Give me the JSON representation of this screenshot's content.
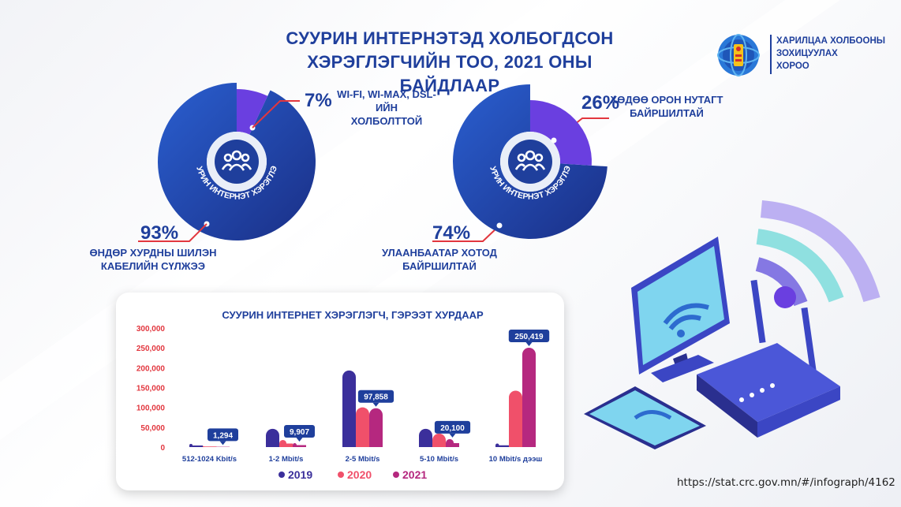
{
  "title": {
    "line1": "СУУРИН ИНТЕРНЭТЭД ХОЛБОГДСОН",
    "line2": "ХЭРЭГЛЭГЧИЙН ТОО, 2021 ОНЫ БАЙДЛААР"
  },
  "org": {
    "line1": "ХАРИЛЦАА ХОЛБООНЫ",
    "line2": "ЗОХИЦУУЛАХ",
    "line3": "ХОРОО",
    "emblem_icon": "soyombo-emblem-icon"
  },
  "donut1": {
    "center_label": "СУУРИН ИНТЕРНЭТ ХЭРЭГЛЭГЧ",
    "small": {
      "pct": "7%",
      "label_line1": "WI-FI, WI-MAX, DSL-ИЙН",
      "label_line2": "ХОЛБОЛТТОЙ",
      "value": 7
    },
    "large": {
      "pct": "93%",
      "label_line1": "ӨНДӨР ХУРДНЫ ШИЛЭН",
      "label_line2": "КАБЕЛИЙН СҮЛЖЭЭ",
      "value": 93
    }
  },
  "donut2": {
    "center_label": "СУУРИН ИНТЕРНЭТ ХЭРЭГЛЭГЧ",
    "small": {
      "pct": "26%",
      "label_line1": "ХӨДӨӨ ОРОН НУТАГТ",
      "label_line2": "БАЙРШИЛТАЙ",
      "value": 26
    },
    "large": {
      "pct": "74%",
      "label_line1": "УЛААНБААТАР ХОТОД",
      "label_line2": "БАЙРШИЛТАЙ",
      "value": 74
    }
  },
  "colors": {
    "navy": "#1f3f9c",
    "purple": "#6a3fe0",
    "blue2019": "#3b2f9b",
    "red2020": "#f0506a",
    "magenta2021": "#b5287f",
    "axis_red": "#e2363e"
  },
  "chart_data": {
    "type": "bar",
    "title": "СУУРИН ИНТЕРНЕТ ХЭРЭГЛЭГЧ, ГЭРЭЭТ ХУРДААР",
    "categories": [
      "512-1024 Kbit/s",
      "1-2 Mbit/s",
      "2-5 Mbit/s",
      "5-10 Mbit/s",
      "10 Mbit/s дээш"
    ],
    "series": [
      {
        "name": "2019",
        "values": [
          8000,
          46000,
          193000,
          46000,
          9000
        ]
      },
      {
        "name": "2020",
        "values": [
          3000,
          18000,
          100000,
          34000,
          142000
        ]
      },
      {
        "name": "2021",
        "values": [
          1294,
          9907,
          97858,
          20100,
          250419
        ]
      }
    ],
    "callouts": [
      "1,294",
      "9,907",
      "97,858",
      "20,100",
      "250,419"
    ],
    "yticks": [
      "300,000",
      "250,000",
      "200,000",
      "150,000",
      "100,000",
      "50,000",
      "0"
    ],
    "ylim": [
      0,
      300000
    ],
    "legend_position": "bottom"
  },
  "source": "https://stat.crc.gov.mn/#/infograph/4162"
}
